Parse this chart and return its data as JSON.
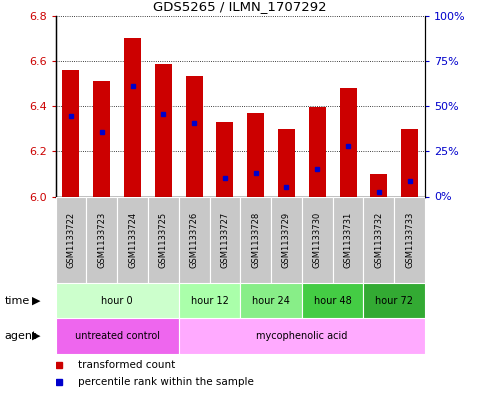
{
  "title": "GDS5265 / ILMN_1707292",
  "samples": [
    "GSM1133722",
    "GSM1133723",
    "GSM1133724",
    "GSM1133725",
    "GSM1133726",
    "GSM1133727",
    "GSM1133728",
    "GSM1133729",
    "GSM1133730",
    "GSM1133731",
    "GSM1133732",
    "GSM1133733"
  ],
  "bar_tops": [
    6.56,
    6.51,
    6.7,
    6.585,
    6.535,
    6.33,
    6.37,
    6.3,
    6.395,
    6.48,
    6.1,
    6.3
  ],
  "bar_bottoms": [
    6.0,
    6.0,
    6.0,
    6.0,
    6.0,
    6.0,
    6.0,
    6.0,
    6.0,
    6.0,
    6.0,
    6.0
  ],
  "blue_positions": [
    6.355,
    6.285,
    6.49,
    6.365,
    6.325,
    6.08,
    6.105,
    6.04,
    6.12,
    6.225,
    6.02,
    6.07
  ],
  "ylim": [
    6.0,
    6.8
  ],
  "yticks_left": [
    6.0,
    6.2,
    6.4,
    6.6,
    6.8
  ],
  "yticks_right": [
    0,
    25,
    50,
    75,
    100
  ],
  "ytick_labels_right": [
    "0%",
    "25%",
    "50%",
    "75%",
    "100%"
  ],
  "bar_color": "#cc0000",
  "blue_color": "#0000cc",
  "time_groups": [
    {
      "label": "hour 0",
      "start": 0,
      "end": 4,
      "color": "#ccffcc"
    },
    {
      "label": "hour 12",
      "start": 4,
      "end": 6,
      "color": "#aaffaa"
    },
    {
      "label": "hour 24",
      "start": 6,
      "end": 8,
      "color": "#88ee88"
    },
    {
      "label": "hour 48",
      "start": 8,
      "end": 10,
      "color": "#44cc44"
    },
    {
      "label": "hour 72",
      "start": 10,
      "end": 12,
      "color": "#33aa33"
    }
  ],
  "agent_groups": [
    {
      "label": "untreated control",
      "start": 0,
      "end": 4,
      "color": "#ee66ee"
    },
    {
      "label": "mycophenolic acid",
      "start": 4,
      "end": 12,
      "color": "#ffaaff"
    }
  ],
  "bar_color_hex": "#cc0000",
  "blue_color_hex": "#0000cc",
  "bg_color": "#ffffff",
  "plot_bg": "#ffffff",
  "tick_label_gray": "#cccccc",
  "legend_items": [
    {
      "label": "transformed count",
      "color": "#cc0000"
    },
    {
      "label": "percentile rank within the sample",
      "color": "#0000cc"
    }
  ],
  "border_color": "#000000"
}
